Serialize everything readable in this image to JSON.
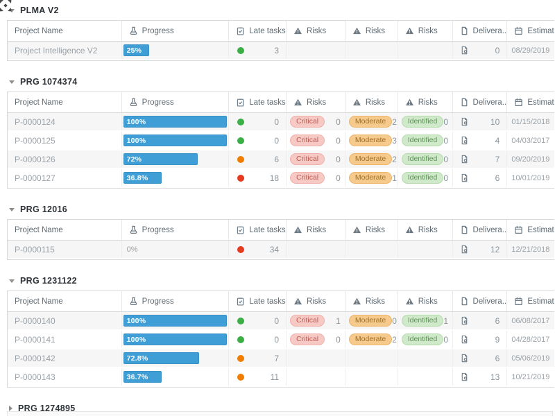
{
  "columns": [
    {
      "key": "name",
      "label": "Project Name",
      "icon": null
    },
    {
      "key": "progress",
      "label": "Progress",
      "icon": "flask-icon"
    },
    {
      "key": "late",
      "label": "Late tasks",
      "icon": "clipboard-check-icon"
    },
    {
      "key": "risk1",
      "label": "Risks",
      "icon": "warning-triangle-icon"
    },
    {
      "key": "risk2",
      "label": "Risks",
      "icon": "warning-triangle-icon"
    },
    {
      "key": "risk3",
      "label": "Risks",
      "icon": "warning-triangle-icon"
    },
    {
      "key": "deliv",
      "label": "Delivera...",
      "icon": "document-icon"
    },
    {
      "key": "est",
      "label": "Estimated...",
      "icon": "calendar-icon"
    }
  ],
  "colors": {
    "progress_bar": "#3f9ed6",
    "late_green": "#3cae46",
    "late_orange": "#f07c00",
    "late_red": "#e63a20",
    "critical_bg": "#f7c9c4",
    "critical_text": "#bb5b52",
    "critical_border": "#f1b0a9",
    "moderate_bg": "#f6ca8d",
    "moderate_text": "#9f6e22",
    "moderate_border": "#eeb567",
    "identified_bg": "#cfe9ca",
    "identified_text": "#57964e",
    "identified_border": "#b2dcaa"
  },
  "groups": [
    {
      "label": "PLMA V2",
      "collapsed": false,
      "rows": [
        {
          "name": "Project Intelligence V2",
          "progress_label": "25%",
          "progress_pct": 25,
          "late_status": "green",
          "late_count": "3",
          "risks": [
            null,
            null,
            null
          ],
          "deliverables_count": "0",
          "estimated": "08/29/2019"
        }
      ]
    },
    {
      "label": "PRG 1074374",
      "collapsed": false,
      "rows": [
        {
          "name": "P-0000124",
          "progress_label": "100%",
          "progress_pct": 100,
          "late_status": "green",
          "late_count": "0",
          "risks": [
            {
              "label": "Critical",
              "count": "0"
            },
            {
              "label": "Moderate",
              "count": "2"
            },
            {
              "label": "Identified",
              "count": "0"
            }
          ],
          "deliverables_count": "10",
          "estimated": "01/15/2018"
        },
        {
          "name": "P-0000125",
          "progress_label": "100%",
          "progress_pct": 100,
          "late_status": "green",
          "late_count": "0",
          "risks": [
            {
              "label": "Critical",
              "count": "0"
            },
            {
              "label": "Moderate",
              "count": "3"
            },
            {
              "label": "Identified",
              "count": "0"
            }
          ],
          "deliverables_count": "4",
          "estimated": "04/03/2017"
        },
        {
          "name": "P-0000126",
          "progress_label": "72%",
          "progress_pct": 72,
          "late_status": "orange",
          "late_count": "6",
          "risks": [
            {
              "label": "Critical",
              "count": "0"
            },
            {
              "label": "Moderate",
              "count": "2"
            },
            {
              "label": "Identified",
              "count": "0"
            }
          ],
          "deliverables_count": "7",
          "estimated": "09/20/2019"
        },
        {
          "name": "P-0000127",
          "progress_label": "36.8%",
          "progress_pct": 36.8,
          "late_status": "red",
          "late_count": "18",
          "risks": [
            {
              "label": "Critical",
              "count": "0"
            },
            {
              "label": "Moderate",
              "count": "1"
            },
            {
              "label": "Identified",
              "count": "0"
            }
          ],
          "deliverables_count": "6",
          "estimated": "10/01/2019"
        }
      ]
    },
    {
      "label": "PRG 12016",
      "collapsed": false,
      "rows": [
        {
          "name": "P-0000115",
          "progress_label": "0%",
          "progress_pct": 0,
          "late_status": "red",
          "late_count": "34",
          "risks": [
            null,
            null,
            null
          ],
          "deliverables_count": "12",
          "estimated": "12/21/2018"
        }
      ]
    },
    {
      "label": "PRG 1231122",
      "collapsed": false,
      "rows": [
        {
          "name": "P-0000140",
          "progress_label": "100%",
          "progress_pct": 100,
          "late_status": "green",
          "late_count": "0",
          "risks": [
            {
              "label": "Critical",
              "count": "1"
            },
            {
              "label": "Moderate",
              "count": "0"
            },
            {
              "label": "Identified",
              "count": "1"
            }
          ],
          "deliverables_count": "6",
          "estimated": "06/08/2017"
        },
        {
          "name": "P-0000141",
          "progress_label": "100%",
          "progress_pct": 100,
          "late_status": "green",
          "late_count": "0",
          "risks": [
            {
              "label": "Critical",
              "count": "0"
            },
            {
              "label": "Moderate",
              "count": "2"
            },
            {
              "label": "Identified",
              "count": "0"
            }
          ],
          "deliverables_count": "9",
          "estimated": "04/28/2017"
        },
        {
          "name": "P-0000142",
          "progress_label": "72.8%",
          "progress_pct": 72.8,
          "late_status": "orange",
          "late_count": "7",
          "risks": [
            null,
            null,
            null
          ],
          "deliverables_count": "6",
          "estimated": "05/06/2019"
        },
        {
          "name": "P-0000143",
          "progress_label": "36.7%",
          "progress_pct": 36.7,
          "late_status": "orange",
          "late_count": "11",
          "risks": [
            null,
            null,
            null
          ],
          "deliverables_count": "13",
          "estimated": "10/21/2019"
        }
      ]
    },
    {
      "label": "PRG 1274895",
      "collapsed": true,
      "rows": []
    }
  ]
}
